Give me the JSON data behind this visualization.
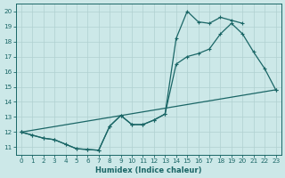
{
  "xlabel": "Humidex (Indice chaleur)",
  "xlim": [
    -0.5,
    23.5
  ],
  "ylim": [
    10.5,
    20.5
  ],
  "yticks": [
    11,
    12,
    13,
    14,
    15,
    16,
    17,
    18,
    19,
    20
  ],
  "xticks": [
    0,
    1,
    2,
    3,
    4,
    5,
    6,
    7,
    8,
    9,
    10,
    11,
    12,
    13,
    14,
    15,
    16,
    17,
    18,
    19,
    20,
    21,
    22,
    23
  ],
  "bg_color": "#cce8e8",
  "line_color": "#1a6666",
  "grid_color": "#b0d0d0",
  "curve1_x": [
    0,
    1,
    2,
    3,
    4,
    5,
    6,
    7,
    8,
    9,
    10,
    11,
    12,
    13,
    14,
    15,
    16,
    17,
    18,
    19,
    20
  ],
  "curve1_y": [
    12.0,
    11.8,
    11.6,
    11.5,
    11.2,
    10.9,
    10.85,
    10.8,
    12.4,
    13.1,
    12.5,
    12.5,
    12.8,
    13.2,
    18.2,
    20.0,
    19.3,
    19.2,
    19.6,
    19.4,
    19.2
  ],
  "curve2_x": [
    0,
    1,
    2,
    3,
    4,
    5,
    6,
    7,
    8,
    9,
    10,
    11,
    12,
    13,
    14,
    15,
    16,
    17,
    18,
    19,
    20,
    21,
    22,
    23
  ],
  "curve2_y": [
    12.0,
    11.8,
    11.6,
    11.5,
    11.2,
    10.9,
    10.85,
    10.8,
    12.4,
    13.1,
    12.5,
    12.5,
    12.8,
    13.2,
    16.5,
    17.0,
    17.2,
    17.5,
    18.5,
    19.2,
    18.5,
    17.3,
    16.2,
    14.8
  ],
  "curve3_x": [
    0,
    23
  ],
  "curve3_y": [
    12.0,
    14.8
  ],
  "marker": "+",
  "markersize": 3.5,
  "linewidth": 0.9
}
